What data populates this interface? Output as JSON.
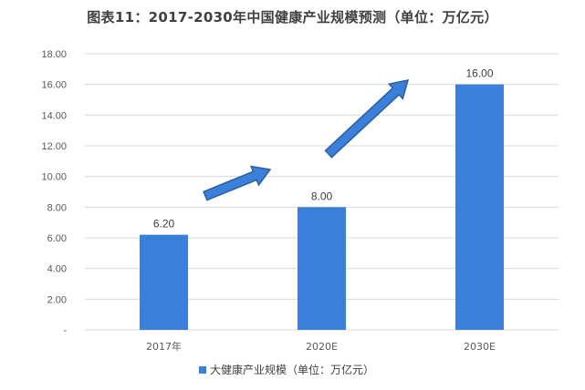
{
  "chart_data": {
    "type": "bar",
    "title": "图表11：2017-2030年中国健康产业规模预测（单位：万亿元）",
    "categories": [
      "2017年",
      "2020E",
      "2030E"
    ],
    "series": [
      {
        "name": "大健康产业规模（单位：万亿元）",
        "values": [
          6.2,
          8.0,
          16.0
        ],
        "value_labels": [
          "6.20",
          "8.00",
          "16.00"
        ]
      }
    ],
    "y_ticks": [
      "-",
      "2.00",
      "4.00",
      "6.00",
      "8.00",
      "10.00",
      "12.00",
      "14.00",
      "16.00",
      "18.00"
    ],
    "ylim": [
      0,
      18
    ],
    "grid": true,
    "legend_position": "bottom",
    "colors": {
      "bar": "#3a7fd9",
      "arrow": "#3a7fd9",
      "arrow_stroke": "#2c5f9e"
    },
    "annotations": [
      "upward-arrow",
      "upward-arrow"
    ]
  }
}
